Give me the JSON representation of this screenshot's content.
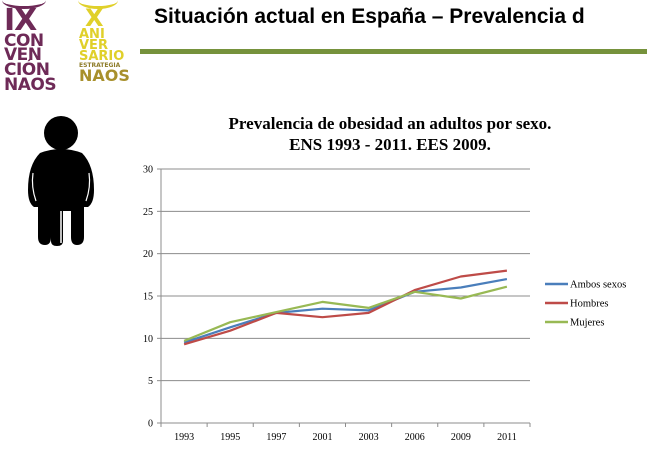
{
  "header": {
    "title": "Situación actual en España – Prevalencia d",
    "accent_color": "#76923c"
  },
  "logos": {
    "convencion": [
      "IX",
      "CON",
      "VEN",
      "CIÓN",
      "NAOS"
    ],
    "aniversario": [
      "X",
      "ANI",
      "VER",
      "SARIO",
      "ESTRATEGIA",
      "NAOS"
    ]
  },
  "icons": {
    "figure": "obese-person-icon"
  },
  "chart_data": {
    "type": "line",
    "title": "Prevalencia de obesidad an adultos por sexo.",
    "subtitle": "ENS 1993 - 2011. EES 2009.",
    "xlabel": "",
    "ylabel": "",
    "categories": [
      "1993",
      "1995",
      "1997",
      "2001",
      "2003",
      "2006",
      "2009",
      "2011"
    ],
    "ylim": [
      0,
      30
    ],
    "yticks": [
      0,
      5,
      10,
      15,
      20,
      25,
      30
    ],
    "grid": true,
    "legend_position": "right",
    "series": [
      {
        "name": "Ambos sexos",
        "color": "#4a7ebb",
        "values": [
          9.5,
          11.3,
          13.0,
          13.5,
          13.3,
          15.5,
          16.0,
          17.0
        ]
      },
      {
        "name": "Hombres",
        "color": "#be4b48",
        "values": [
          9.3,
          10.9,
          13.0,
          12.5,
          13.0,
          15.7,
          17.3,
          18.0
        ]
      },
      {
        "name": "Mujeres",
        "color": "#98b954",
        "values": [
          9.7,
          11.9,
          13.1,
          14.3,
          13.6,
          15.5,
          14.7,
          16.1
        ]
      }
    ]
  }
}
